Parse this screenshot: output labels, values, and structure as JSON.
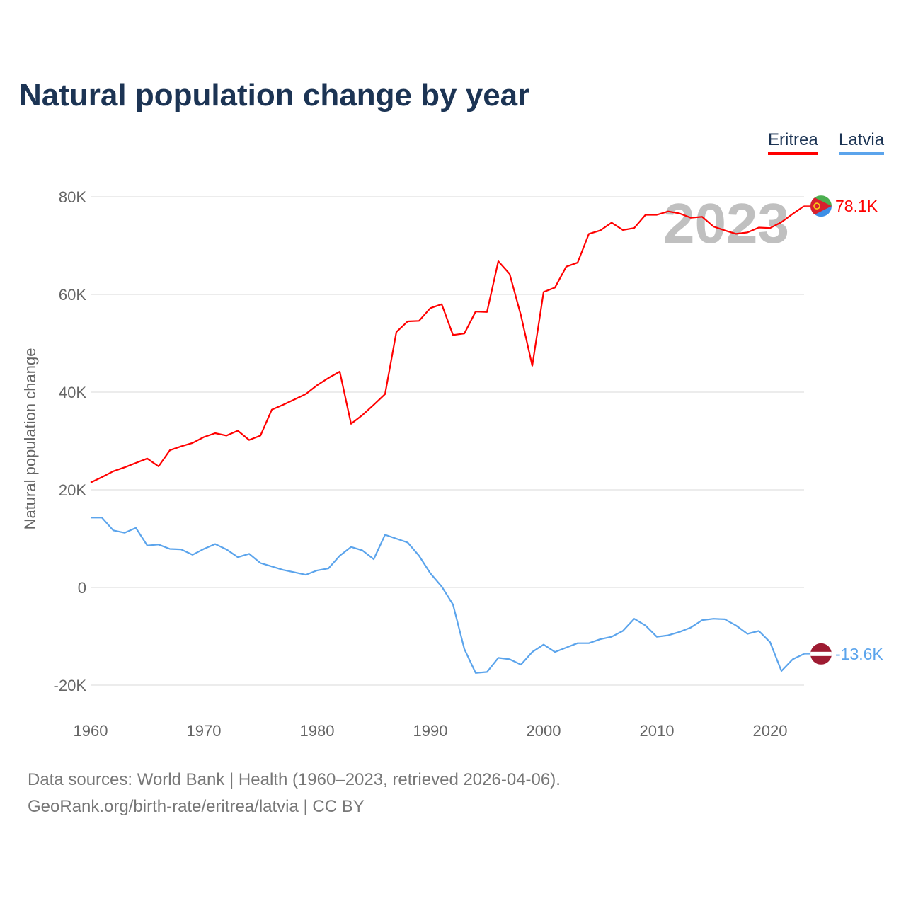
{
  "title": "Natural population change by year",
  "legend": [
    {
      "label": "Eritrea",
      "color": "#ff0000"
    },
    {
      "label": "Latvia",
      "color": "#5ba4ec"
    }
  ],
  "watermark_year": "2023",
  "footer": {
    "line1": "Data sources: World Bank | Health (1960–2023, retrieved 2026-04-06).",
    "line2": "GeoRank.org/birth-rate/eritrea/latvia | CC BY"
  },
  "chart_data": {
    "type": "line",
    "title": "Natural population change by year",
    "xlabel": "",
    "ylabel": "Natural population change",
    "xlim": [
      1960,
      2023
    ],
    "ylim": [
      -20000,
      80000
    ],
    "x_ticks": [
      1960,
      1970,
      1980,
      1990,
      2000,
      2010,
      2020
    ],
    "y_ticks": [
      {
        "v": -20000,
        "label": "-20K"
      },
      {
        "v": 0,
        "label": "0"
      },
      {
        "v": 20000,
        "label": "20K"
      },
      {
        "v": 40000,
        "label": "40K"
      },
      {
        "v": 60000,
        "label": "60K"
      },
      {
        "v": 80000,
        "label": "80K"
      }
    ],
    "grid": true,
    "legend_position": "top-right",
    "x_start": 1960,
    "series": [
      {
        "name": "Eritrea",
        "color": "#ff0000",
        "end_label": "78.1K",
        "flag": "eritrea",
        "values": [
          21500,
          22600,
          23800,
          24600,
          25500,
          26400,
          24800,
          28100,
          28900,
          29600,
          30800,
          31600,
          31100,
          32100,
          30200,
          31100,
          36400,
          37400,
          38500,
          39600,
          41400,
          42900,
          44200,
          33500,
          35300,
          37400,
          39600,
          52300,
          54500,
          54600,
          57200,
          58000,
          51700,
          52000,
          56500,
          56400,
          66800,
          64200,
          55700,
          45400,
          60500,
          61400,
          65700,
          66500,
          72400,
          73100,
          74700,
          73200,
          73600,
          76300,
          76300,
          77000,
          76600,
          75700,
          75900,
          73900,
          73100,
          72400,
          72700,
          73700,
          73600,
          74800,
          76500,
          78100
        ]
      },
      {
        "name": "Latvia",
        "color": "#5ba4ec",
        "end_label": "-13.6K",
        "flag": "latvia",
        "values": [
          14300,
          14300,
          11700,
          11200,
          12200,
          8600,
          8800,
          7900,
          7800,
          6700,
          7900,
          8900,
          7800,
          6200,
          6900,
          5000,
          4300,
          3600,
          3100,
          2600,
          3500,
          3900,
          6500,
          8300,
          7600,
          5800,
          10800,
          10000,
          9200,
          6500,
          2900,
          200,
          -3500,
          -12600,
          -17500,
          -17300,
          -14400,
          -14700,
          -15800,
          -13200,
          -11700,
          -13200,
          -12300,
          -11400,
          -11400,
          -10600,
          -10100,
          -8900,
          -6400,
          -7800,
          -10100,
          -9800,
          -9100,
          -8200,
          -6700,
          -6400,
          -6500,
          -7800,
          -9500,
          -8900,
          -11200,
          -17100,
          -14700,
          -13600
        ]
      }
    ]
  }
}
